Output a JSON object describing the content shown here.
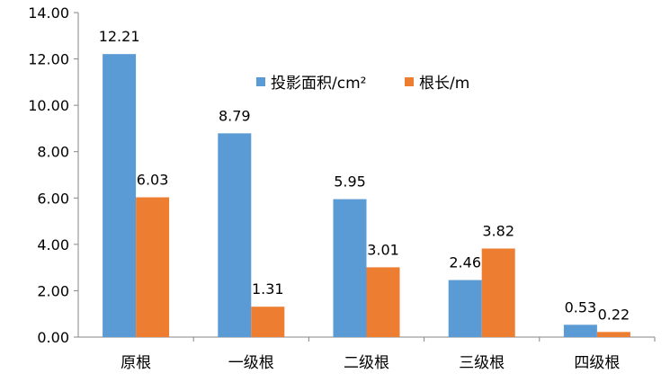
{
  "chart_data": {
    "type": "bar",
    "categories": [
      "原根",
      "一级根",
      "二级根",
      "三级根",
      "四级根"
    ],
    "series": [
      {
        "name": "投影面积/cm²",
        "values": [
          12.21,
          8.79,
          5.95,
          2.46,
          0.53
        ],
        "color": "#5B9BD5"
      },
      {
        "name": "根长/m",
        "values": [
          6.03,
          1.31,
          3.01,
          3.82,
          0.22
        ],
        "color": "#ED7D31"
      }
    ],
    "ylim": [
      0,
      14
    ],
    "yticks": [
      "0.00",
      "2.00",
      "4.00",
      "6.00",
      "8.00",
      "10.00",
      "12.00",
      "14.00"
    ],
    "grid": false,
    "legend": "top-center",
    "data_labels": true
  }
}
